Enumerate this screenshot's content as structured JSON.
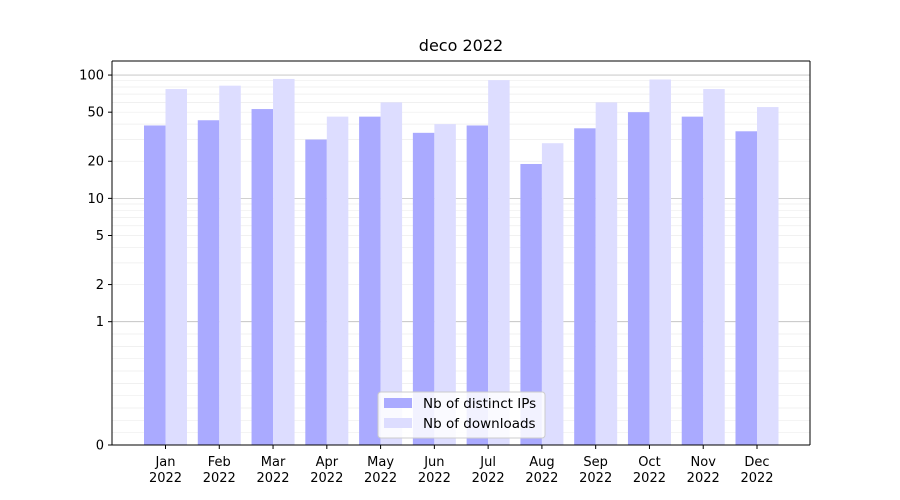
{
  "chart_data": {
    "type": "bar",
    "title": "deco 2022",
    "xlabel": "",
    "ylabel": "",
    "yscale": "symlog",
    "ylim": [
      0,
      130
    ],
    "yticks": [
      0,
      1,
      2,
      5,
      10,
      20,
      50,
      100
    ],
    "grid": true,
    "legend_position": "bottom-center",
    "categories": [
      [
        "Jan",
        "2022"
      ],
      [
        "Feb",
        "2022"
      ],
      [
        "Mar",
        "2022"
      ],
      [
        "Apr",
        "2022"
      ],
      [
        "May",
        "2022"
      ],
      [
        "Jun",
        "2022"
      ],
      [
        "Jul",
        "2022"
      ],
      [
        "Aug",
        "2022"
      ],
      [
        "Sep",
        "2022"
      ],
      [
        "Oct",
        "2022"
      ],
      [
        "Nov",
        "2022"
      ],
      [
        "Dec",
        "2022"
      ]
    ],
    "series": [
      {
        "name": "Nb of distinct IPs",
        "color": "#aaaaff",
        "values": [
          39,
          43,
          53,
          30,
          46,
          34,
          39,
          19,
          37,
          50,
          46,
          35
        ]
      },
      {
        "name": "Nb of downloads",
        "color": "#ddddff",
        "values": [
          77,
          82,
          93,
          46,
          60,
          40,
          91,
          28,
          60,
          92,
          77,
          55
        ]
      }
    ]
  }
}
